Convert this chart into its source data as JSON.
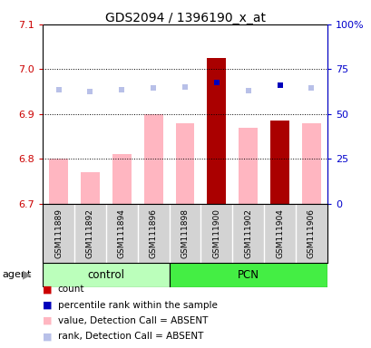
{
  "title": "GDS2094 / 1396190_x_at",
  "samples": [
    "GSM111889",
    "GSM111892",
    "GSM111894",
    "GSM111896",
    "GSM111898",
    "GSM111900",
    "GSM111902",
    "GSM111904",
    "GSM111906"
  ],
  "n_control": 4,
  "n_pcn": 5,
  "bar_values": [
    6.8,
    6.77,
    6.81,
    6.9,
    6.88,
    7.025,
    6.87,
    6.885,
    6.88
  ],
  "bar_colors": [
    "#FFB6C1",
    "#FFB6C1",
    "#FFB6C1",
    "#FFB6C1",
    "#FFB6C1",
    "#AA0000",
    "#FFB6C1",
    "#AA0000",
    "#FFB6C1"
  ],
  "rank_dots": [
    6.955,
    6.95,
    6.954,
    6.958,
    6.96,
    6.97,
    6.952,
    6.965,
    6.958
  ],
  "rank_dot_colors": [
    "#B8C0E8",
    "#B8C0E8",
    "#B8C0E8",
    "#B8C0E8",
    "#B8C0E8",
    "#0000BB",
    "#B8C0E8",
    "#0000BB",
    "#B8C0E8"
  ],
  "ylim_left": [
    6.7,
    7.1
  ],
  "ylim_right": [
    0,
    100
  ],
  "right_ticks": [
    0,
    25,
    50,
    75,
    100
  ],
  "right_tick_labels": [
    "0",
    "25",
    "50",
    "75",
    "100%"
  ],
  "left_ticks": [
    6.7,
    6.8,
    6.9,
    7.0,
    7.1
  ],
  "dotted_lines": [
    6.8,
    6.9,
    7.0
  ],
  "bar_bottom": 6.7,
  "tick_color_left": "#CC0000",
  "tick_color_right": "#0000CC",
  "ctrl_color": "#BBFFBB",
  "pcn_color": "#44EE44",
  "sample_bg": "#D3D3D3",
  "legend_items": [
    {
      "color": "#CC0000",
      "label": "count"
    },
    {
      "color": "#0000BB",
      "label": "percentile rank within the sample"
    },
    {
      "color": "#FFB6C1",
      "label": "value, Detection Call = ABSENT"
    },
    {
      "color": "#B8C0E8",
      "label": "rank, Detection Call = ABSENT"
    }
  ]
}
